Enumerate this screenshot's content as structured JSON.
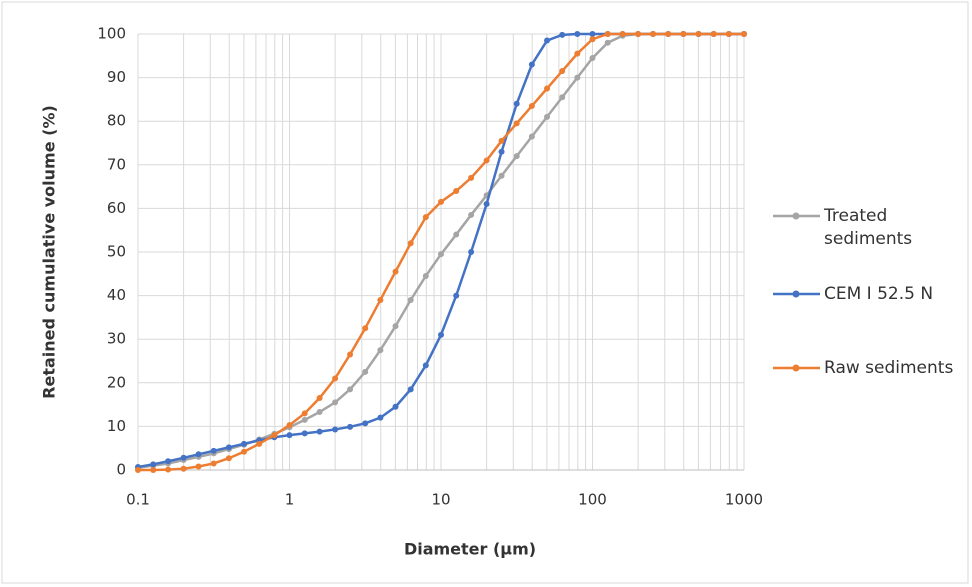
{
  "chart_data": {
    "type": "line",
    "x_label": "Diameter (µm)",
    "y_label": "Retained cumulative volume (%)",
    "x_scale": "log",
    "x": [
      0.1,
      0.126,
      0.158,
      0.2,
      0.251,
      0.316,
      0.398,
      0.501,
      0.631,
      0.794,
      1,
      1.26,
      1.58,
      2,
      2.51,
      3.16,
      3.98,
      5.01,
      6.31,
      7.94,
      10,
      12.6,
      15.8,
      20,
      25.1,
      31.6,
      39.8,
      50.1,
      63.1,
      79.4,
      100,
      126,
      158,
      200,
      251,
      316,
      398,
      501,
      631,
      794,
      1000
    ],
    "series": [
      {
        "name": "Treated sediments",
        "color": "#a5a5a5",
        "values": [
          0.5,
          1,
          1.5,
          2.3,
          3,
          3.8,
          4.8,
          5.8,
          7,
          8.3,
          9.8,
          11.5,
          13.3,
          15.5,
          18.5,
          22.5,
          27.5,
          33,
          39,
          44.5,
          49.5,
          54,
          58.5,
          63,
          67.5,
          72,
          76.5,
          81,
          85.5,
          90,
          94.5,
          98,
          99.6,
          100,
          100,
          100,
          100,
          100,
          100,
          100,
          100
        ]
      },
      {
        "name": "CEM I 52.5 N",
        "color": "#4472c4",
        "values": [
          0.7,
          1.3,
          2,
          2.8,
          3.6,
          4.4,
          5.2,
          6,
          6.8,
          7.5,
          8,
          8.4,
          8.8,
          9.3,
          9.9,
          10.7,
          12,
          14.5,
          18.5,
          24,
          31,
          40,
          50,
          61,
          73,
          84,
          93,
          98.5,
          99.8,
          100,
          100,
          100,
          100,
          100,
          100,
          100,
          100,
          100,
          100,
          100,
          100
        ]
      },
      {
        "name": "Raw sediments",
        "color": "#ed7d31",
        "values": [
          0,
          0,
          0.1,
          0.3,
          0.8,
          1.5,
          2.7,
          4.2,
          6,
          8,
          10.3,
          13,
          16.5,
          21,
          26.5,
          32.5,
          39,
          45.5,
          52,
          58,
          61.5,
          64,
          67,
          71,
          75.5,
          79.5,
          83.5,
          87.5,
          91.5,
          95.5,
          98.8,
          100,
          100,
          100,
          100,
          100,
          100,
          100,
          100,
          100,
          100
        ]
      }
    ],
    "xlim": [
      0.1,
      1000
    ],
    "xticks": [
      0.1,
      1,
      10,
      100,
      1000
    ],
    "ylim": [
      0,
      100
    ],
    "yticks": [
      0,
      10,
      20,
      30,
      40,
      50,
      60,
      70,
      80,
      90,
      100
    ],
    "grid": true,
    "minor_grid": true,
    "legend": "right"
  }
}
